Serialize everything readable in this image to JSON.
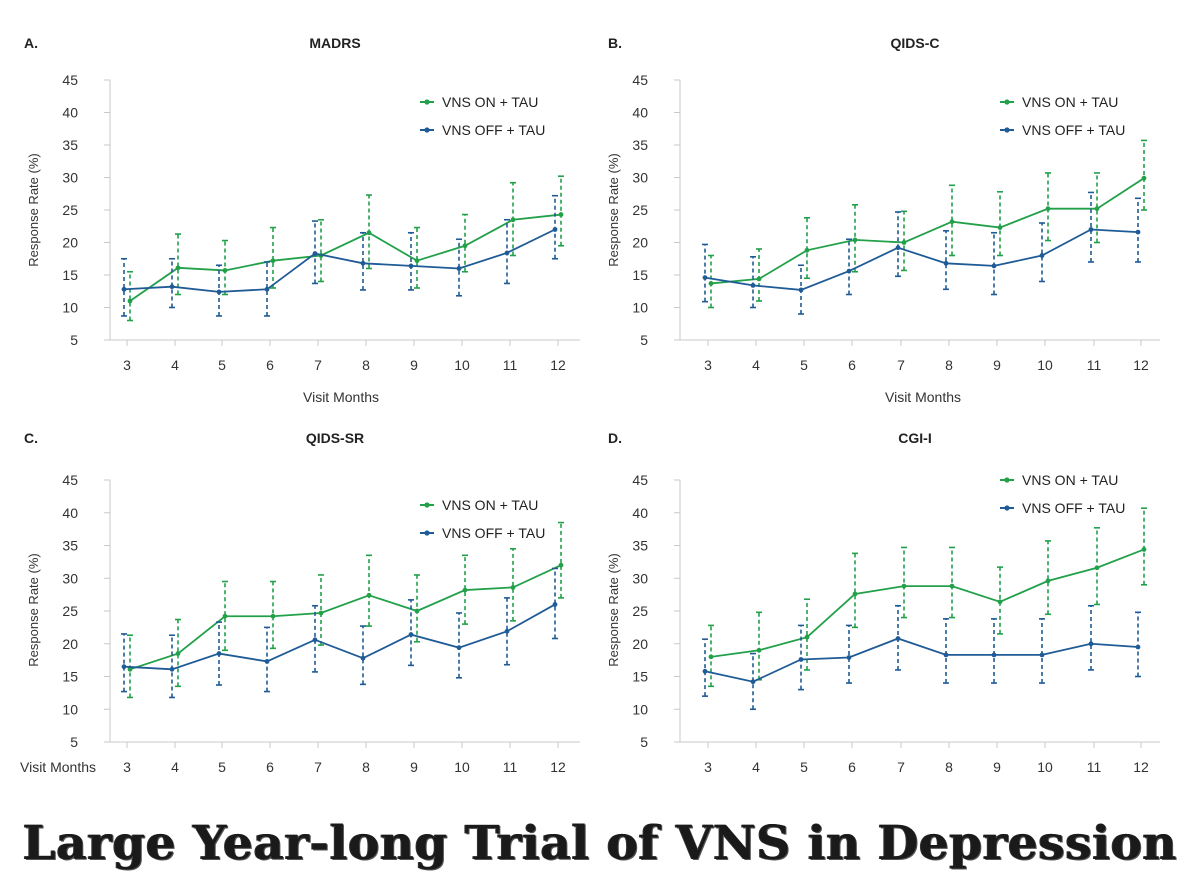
{
  "banner": {
    "title": "Large Year-long Trial of VNS in Depression"
  },
  "colors": {
    "on": "#22a04a",
    "off": "#1f5b96",
    "axis": "#c8c8c8",
    "text": "#333333"
  },
  "chart_data": [
    {
      "type": "line",
      "panel_label": "A.",
      "title": "MADRS",
      "xlabel": "Visit Months",
      "ylabel": "Response Rate (%)",
      "x": [
        3,
        4,
        5,
        6,
        7,
        8,
        9,
        10,
        11,
        12
      ],
      "ylim": [
        5,
        45
      ],
      "yticks": [
        5,
        10,
        15,
        20,
        25,
        30,
        35,
        40,
        45
      ],
      "legend": "top-right",
      "series": [
        {
          "name": "VNS ON + TAU",
          "key": "on",
          "values": [
            11,
            16.1,
            15.7,
            17.2,
            18,
            21.5,
            17.2,
            19.5,
            23.5,
            24.3
          ],
          "err_low": [
            8,
            12,
            12,
            13,
            14,
            16,
            13,
            15.5,
            18,
            19.5
          ],
          "err_high": [
            15.5,
            21.3,
            20.3,
            22.3,
            23.5,
            27.3,
            22.3,
            24.3,
            29.2,
            30.2
          ]
        },
        {
          "name": "VNS OFF + TAU",
          "key": "off",
          "values": [
            12.8,
            13.2,
            12.4,
            12.8,
            18.3,
            16.8,
            16.4,
            16,
            18.4,
            22
          ],
          "err_low": [
            8.7,
            10,
            8.7,
            8.7,
            13.7,
            12.7,
            12.7,
            11.8,
            13.7,
            17.5
          ],
          "err_high": [
            17.5,
            17.5,
            16.5,
            17,
            23.3,
            21.5,
            21.5,
            20.5,
            23.5,
            27.2
          ]
        }
      ]
    },
    {
      "type": "line",
      "panel_label": "B.",
      "title": "QIDS-C",
      "xlabel": "Visit Months",
      "ylabel": "Response Rate (%)",
      "x": [
        3,
        4,
        5,
        6,
        7,
        8,
        9,
        10,
        11,
        12
      ],
      "ylim": [
        5,
        45
      ],
      "yticks": [
        5,
        10,
        15,
        20,
        25,
        30,
        35,
        40,
        45
      ],
      "legend": "top-right",
      "series": [
        {
          "name": "VNS ON + TAU",
          "key": "on",
          "values": [
            13.7,
            14.4,
            18.8,
            20.4,
            20,
            23.2,
            22.3,
            25.2,
            25.2,
            29.9
          ],
          "err_low": [
            10,
            11,
            14.5,
            15.5,
            15.7,
            18,
            18,
            20.3,
            20,
            25
          ],
          "err_high": [
            18,
            19,
            23.8,
            25.8,
            24.8,
            28.8,
            27.8,
            30.7,
            30.7,
            35.7
          ]
        },
        {
          "name": "VNS OFF + TAU",
          "key": "off",
          "values": [
            14.6,
            13.4,
            12.7,
            15.6,
            19.2,
            16.8,
            16.4,
            18,
            22,
            21.6
          ],
          "err_low": [
            10.9,
            10,
            9,
            12,
            14.8,
            12.8,
            12,
            14,
            17,
            17
          ],
          "err_high": [
            19.7,
            17.8,
            16.5,
            20.5,
            24.7,
            21.8,
            21.5,
            23,
            27.7,
            26.8
          ]
        }
      ]
    },
    {
      "type": "line",
      "panel_label": "C.",
      "title": "QIDS-SR",
      "xlabel": "Visit Months",
      "ylabel": "Response Rate (%)",
      "x": [
        3,
        4,
        5,
        6,
        7,
        8,
        9,
        10,
        11,
        12
      ],
      "ylim": [
        5,
        45
      ],
      "yticks": [
        5,
        10,
        15,
        20,
        25,
        30,
        35,
        40,
        45
      ],
      "legend": "top-right",
      "series": [
        {
          "name": "VNS ON + TAU",
          "key": "on",
          "values": [
            16.1,
            18.5,
            24.2,
            24.2,
            24.7,
            27.4,
            25,
            28.2,
            28.6,
            32
          ],
          "err_low": [
            11.8,
            13.5,
            19,
            19.3,
            19.8,
            22.7,
            20.3,
            23,
            23.5,
            27
          ],
          "err_high": [
            21.3,
            23.7,
            29.5,
            29.5,
            30.5,
            33.5,
            30.5,
            33.5,
            34.5,
            38.5
          ]
        },
        {
          "name": "VNS OFF + TAU",
          "key": "off",
          "values": [
            16.5,
            16.1,
            18.5,
            17.3,
            20.6,
            17.8,
            21.4,
            19.4,
            21.9,
            26
          ],
          "err_low": [
            12.7,
            11.8,
            13.7,
            12.7,
            15.7,
            13.8,
            16.7,
            14.8,
            16.8,
            20.8
          ],
          "err_high": [
            21.5,
            21.3,
            23.3,
            22.5,
            25.8,
            22.7,
            26.7,
            24.7,
            27,
            31.5
          ]
        }
      ]
    },
    {
      "type": "line",
      "panel_label": "D.",
      "title": "CGI-I",
      "xlabel": "",
      "ylabel": "Response Rate (%)",
      "x": [
        3,
        4,
        5,
        6,
        7,
        8,
        9,
        10,
        11,
        12
      ],
      "ylim": [
        5,
        45
      ],
      "yticks": [
        5,
        10,
        15,
        20,
        25,
        30,
        35,
        40,
        45
      ],
      "legend": "top-right",
      "series": [
        {
          "name": "VNS ON + TAU",
          "key": "on",
          "values": [
            18,
            19,
            21,
            27.6,
            28.8,
            28.8,
            26.4,
            29.6,
            31.6,
            34.4
          ],
          "err_low": [
            13.5,
            14.5,
            16,
            22.5,
            24,
            24,
            21.5,
            24.5,
            26,
            29
          ],
          "err_high": [
            22.8,
            24.8,
            26.8,
            33.8,
            34.7,
            34.7,
            31.7,
            35.7,
            37.7,
            40.7
          ]
        },
        {
          "name": "VNS OFF + TAU",
          "key": "off",
          "values": [
            15.8,
            14.2,
            17.6,
            17.9,
            20.8,
            18.3,
            18.3,
            18.3,
            20,
            19.5
          ],
          "err_low": [
            12,
            10,
            13,
            14,
            16,
            14,
            14,
            14,
            16,
            15
          ],
          "err_high": [
            20.7,
            18.5,
            22.8,
            22.8,
            25.8,
            23.8,
            23.8,
            23.8,
            25.8,
            24.8
          ]
        }
      ]
    }
  ],
  "footer": {
    "visit_months_label": "Visit Months"
  }
}
